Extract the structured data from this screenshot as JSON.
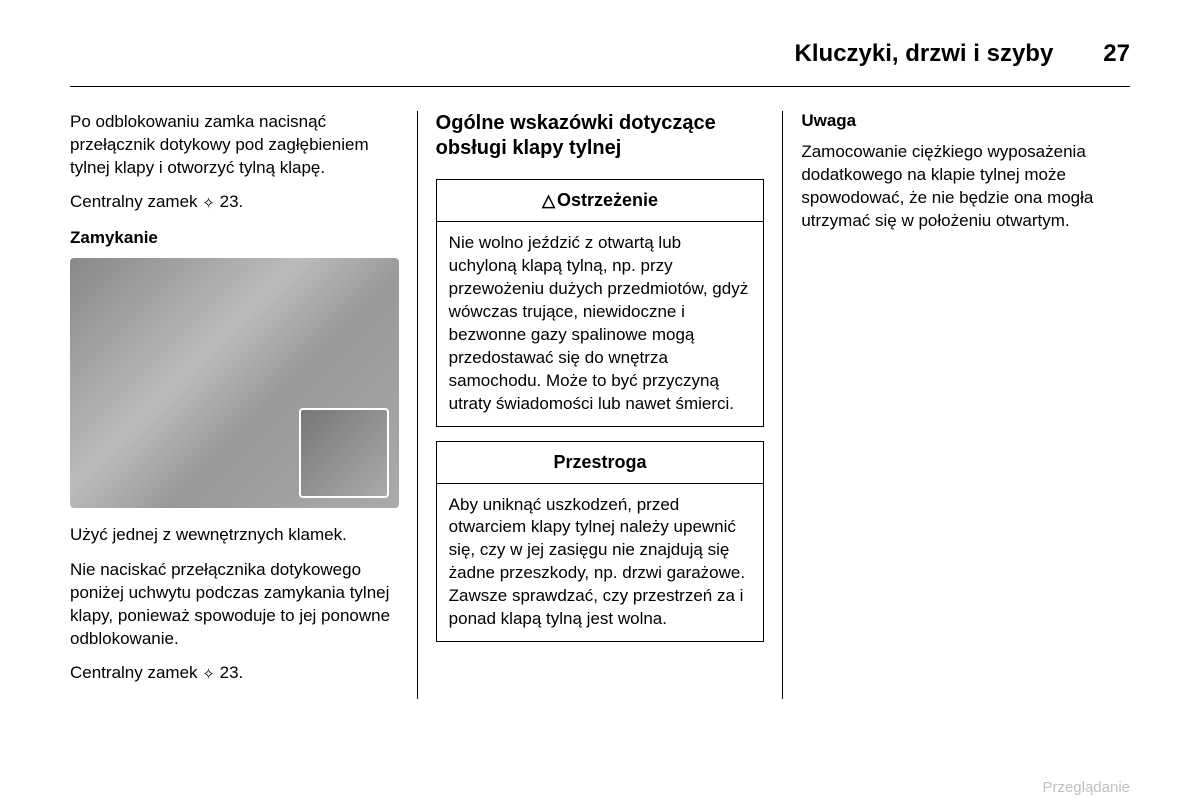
{
  "header": {
    "title": "Kluczyki, drzwi i szyby",
    "page_number": "27"
  },
  "col1": {
    "para1": "Po odblokowaniu zamka nacisnąć przełącznik dotykowy pod zagłębieniem tylnej klapy i otworzyć tylną klapę.",
    "xref1_label": "Centralny zamek",
    "xref1_num": "23.",
    "subhead": "Zamykanie",
    "image_alt": "tailgate-closing-illustration",
    "para2": "Użyć jednej z wewnętrznych klamek.",
    "para3": "Nie naciskać przełącznika dotykowego poniżej uchwytu podczas zamykania tylnej klapy, ponieważ spowoduje to jej ponowne odblokowanie.",
    "xref2_label": "Centralny zamek",
    "xref2_num": "23."
  },
  "col2": {
    "section_heading": "Ogólne wskazówki dotyczące obsługi klapy tylnej",
    "warning": {
      "title": "Ostrzeżenie",
      "body": "Nie wolno jeździć z otwartą lub uchyloną klapą tylną, np. przy przewożeniu dużych przedmiotów, gdyż wówczas trujące, niewidoczne i bezwonne gazy spalinowe mogą przedostawać się do wnętrza samochodu. Może to być przyczyną utraty świadomości lub nawet śmierci."
    },
    "caution": {
      "title": "Przestroga",
      "body": "Aby uniknąć uszkodzeń, przed otwarciem klapy tylnej należy upewnić się, czy w jej zasięgu nie znajdują się żadne przeszkody, np. drzwi garażowe. Zawsze sprawdzać, czy przestrzeń za i ponad klapą tylną jest wolna."
    }
  },
  "col3": {
    "note_title": "Uwaga",
    "note_body": "Zamocowanie ciężkiego wyposażenia dodatkowego na klapie tylnej może spowodować, że nie będzie ona mogła utrzymać się w położeniu otwartym."
  },
  "footer": "Przeglądanie",
  "colors": {
    "text": "#000000",
    "background": "#ffffff",
    "footer_text": "#c0c0c0",
    "border": "#000000"
  }
}
